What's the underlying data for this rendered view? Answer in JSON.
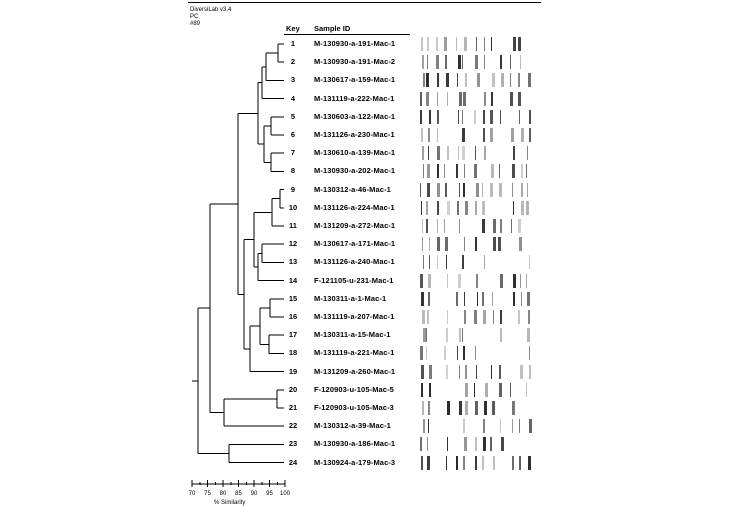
{
  "header": {
    "software": "DiversiLab v3.4",
    "method": "PC",
    "option": "#89"
  },
  "columns": {
    "key": "Key",
    "sample_id": "Sample ID"
  },
  "samples": [
    {
      "key": "1",
      "id": "M-130930-a-191-Mac-1"
    },
    {
      "key": "2",
      "id": "M-130930-a-191-Mac-2"
    },
    {
      "key": "3",
      "id": "M-130617-a-159-Mac-1"
    },
    {
      "key": "4",
      "id": "M-131119-a-222-Mac-1"
    },
    {
      "key": "5",
      "id": "M-130603-a-122-Mac-1"
    },
    {
      "key": "6",
      "id": "M-131126-a-230-Mac-1"
    },
    {
      "key": "7",
      "id": "M-130610-a-139-Mac-1"
    },
    {
      "key": "8",
      "id": "M-130930-a-202-Mac-1"
    },
    {
      "key": "9",
      "id": "M-130312-a-46-Mac-1"
    },
    {
      "key": "10",
      "id": "M-131126-a-224-Mac-1"
    },
    {
      "key": "11",
      "id": "M-131209-a-272-Mac-1"
    },
    {
      "key": "12",
      "id": "M-130617-a-171-Mac-1"
    },
    {
      "key": "13",
      "id": "M-131126-a-240-Mac-1"
    },
    {
      "key": "14",
      "id": "F-121105-u-231-Mac-1"
    },
    {
      "key": "15",
      "id": "M-130311-a-1-Mac-1"
    },
    {
      "key": "16",
      "id": "M-131119-a-207-Mac-1"
    },
    {
      "key": "17",
      "id": "M-130311-a-15-Mac-1"
    },
    {
      "key": "18",
      "id": "M-131119-a-221-Mac-1"
    },
    {
      "key": "19",
      "id": "M-131209-a-260-Mac-1"
    },
    {
      "key": "20",
      "id": "F-120903-u-105-Mac-5"
    },
    {
      "key": "21",
      "id": "F-120903-u-105-Mac-3"
    },
    {
      "key": "22",
      "id": "M-130312-a-39-Mac-1"
    },
    {
      "key": "23",
      "id": "M-130930-a-186-Mac-1"
    },
    {
      "key": "24",
      "id": "M-130924-a-179-Mac-3"
    }
  ],
  "scale": {
    "ticks": [
      "70",
      "75",
      "80",
      "85",
      "90",
      "95",
      "100"
    ],
    "title": "% Similarity"
  }
}
